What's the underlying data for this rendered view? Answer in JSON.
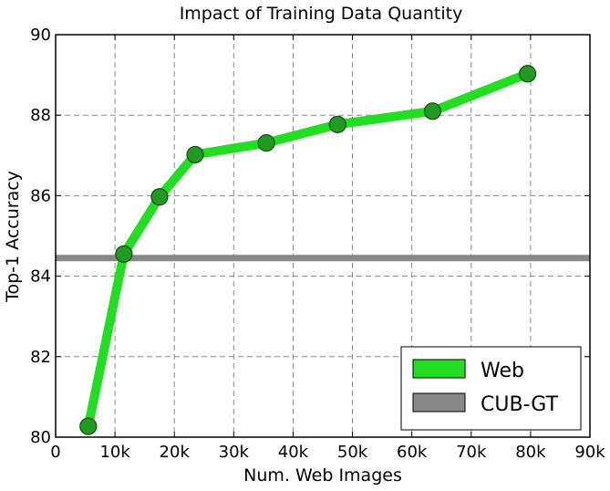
{
  "chart_data": {
    "type": "line",
    "title": "Impact of Training Data Quantity",
    "xlabel": "Num. Web Images",
    "ylabel": "Top-1 Accuracy",
    "xlim": [
      0,
      90000
    ],
    "ylim": [
      80,
      90
    ],
    "x_ticks": [
      0,
      10000,
      20000,
      30000,
      40000,
      50000,
      60000,
      70000,
      80000,
      90000
    ],
    "x_tick_labels": [
      "0",
      "10k",
      "20k",
      "30k",
      "40k",
      "50k",
      "60k",
      "70k",
      "80k",
      "90k"
    ],
    "y_ticks": [
      80,
      82,
      84,
      86,
      88,
      90
    ],
    "y_tick_labels": [
      "80",
      "82",
      "84",
      "86",
      "88",
      "90"
    ],
    "grid": true,
    "grid_style": "dashed",
    "legend_position": "bottom-right",
    "series": [
      {
        "name": "Web",
        "color": "#22dd22",
        "marker_color": "#229922",
        "x": [
          5500,
          11500,
          17500,
          23500,
          35500,
          47500,
          63500,
          79500
        ],
        "values": [
          80.27,
          84.55,
          85.97,
          87.02,
          87.31,
          87.77,
          88.1,
          89.03
        ]
      },
      {
        "name": "CUB-GT",
        "color": "#888888",
        "constant": 84.45
      }
    ]
  }
}
